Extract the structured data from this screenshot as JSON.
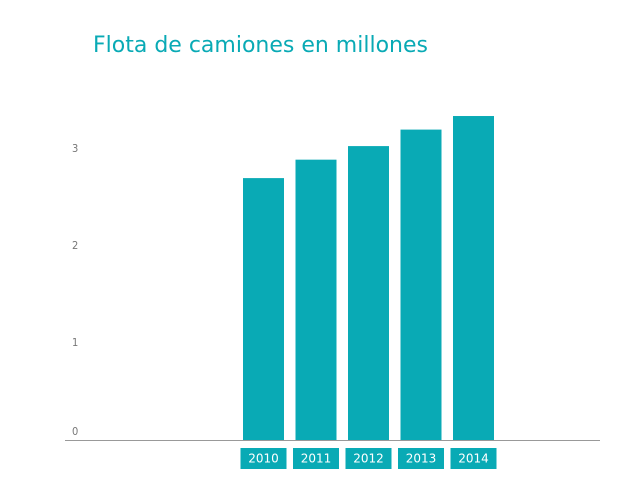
{
  "chart_data": {
    "type": "bar",
    "title": "Flota de camiones en millones",
    "categories": [
      "2010",
      "2011",
      "2012",
      "2013",
      "2014"
    ],
    "values": [
      2.7,
      2.89,
      3.03,
      3.2,
      3.34
    ],
    "color": "#09aab5",
    "ylim": [
      0,
      3.5
    ],
    "yticks": [
      0,
      1,
      2,
      3
    ],
    "grid": false
  }
}
